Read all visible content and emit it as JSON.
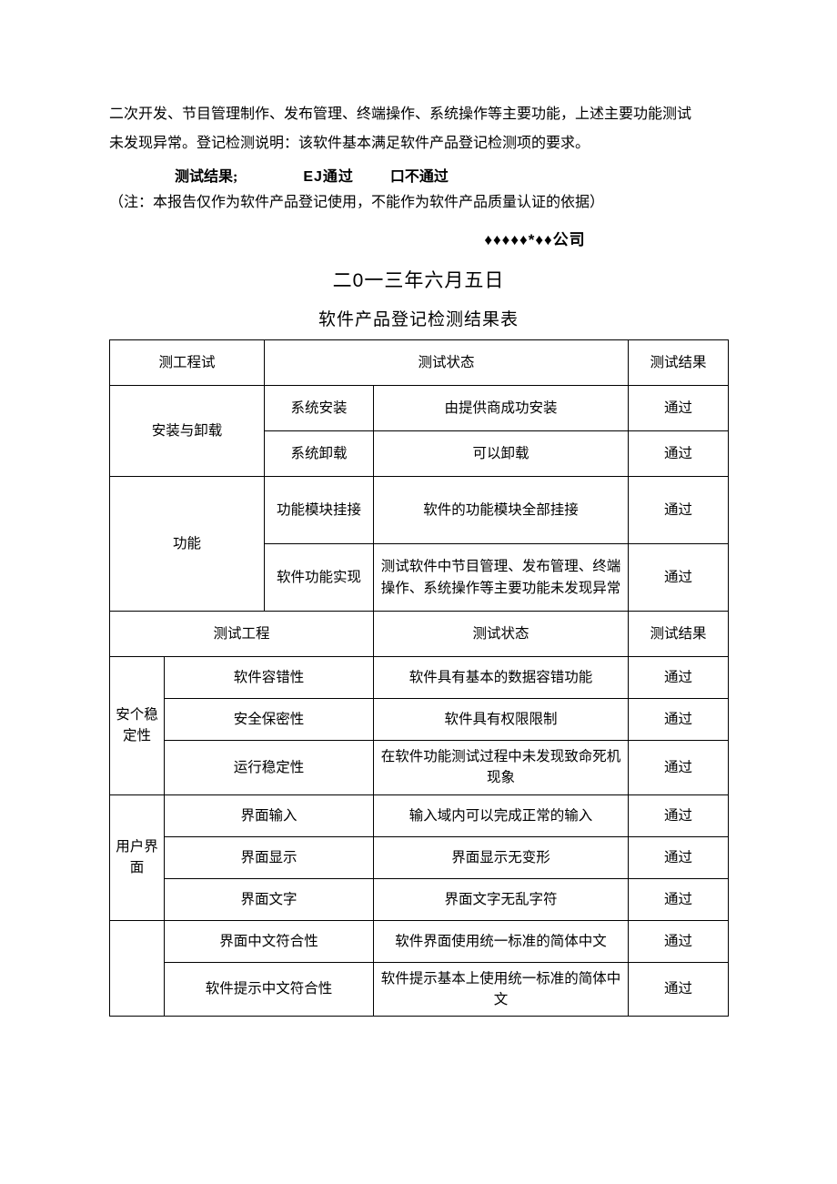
{
  "colors": {
    "text": "#000000",
    "bg": "#ffffff",
    "border": "#000000"
  },
  "intro": {
    "line1": "二次开发、节目管理制作、发布管理、终端操作、系统操作等主要功能，上述主要功能测试",
    "line2": "未发现异常。登记检测说明：该软件基本满足软件产品登记检测项的要求。"
  },
  "result_line": {
    "label": "测试结果;",
    "pass": "EJ通过",
    "fail": "口不通过"
  },
  "note": "（注：本报告仅作为软件产品登记使用，不能作为软件产品质量认证的依据）",
  "company": "♦♦♦♦♦*♦♦公司",
  "date": {
    "prefix": "二",
    "zero": "0",
    "suffix": "一三年六月五日"
  },
  "table_title": "软件产品登记检测结果表",
  "headers": {
    "project": "测工程试",
    "status": "测试状态",
    "result": "测试结果",
    "project2": "测试工程"
  },
  "install": {
    "group": "安装与卸载",
    "r1c1": "系统安装",
    "r1status": "由提供商成功安装",
    "r1res": "通过",
    "r2c1": "系统卸载",
    "r2status": "可以卸载",
    "r2res": "通过"
  },
  "func": {
    "group": "功能",
    "r1c1": "功能模块挂接",
    "r1status": "软件的功能模块全部挂接",
    "r1res": "通过",
    "r2c1": "软件功能实现",
    "r2status": "测试软件中节目管理、发布管理、终端操作、系统操作等主要功能未发现异常",
    "r2res": "通过"
  },
  "stability": {
    "group": "安个稳定性",
    "r1c1": "软件容错性",
    "r1status": "软件具有基本的数据容错功能",
    "r1res": "通过",
    "r2c1": "安全保密性",
    "r2status": "软件具有权限限制",
    "r2res": "通过",
    "r3c1": "运行稳定性",
    "r3status": "在软件功能测试过程中未发现致命死机现象",
    "r3res": "通过"
  },
  "ui": {
    "group": "用户界面",
    "r1c1": "界面输入",
    "r1status": "输入域内可以完成正常的输入",
    "r1res": "通过",
    "r2c1": "界面显示",
    "r2status": "界面显示无变形",
    "r2res": "通过",
    "r3c1": "界面文字",
    "r3status": "界面文字无乱字符",
    "r3res": "通过"
  },
  "conformance": {
    "r1c1": "界面中文符合性",
    "r1status": "软件界面使用统一标准的简体中文",
    "r1res": "通过",
    "r2c1": "软件提示中文符合性",
    "r2status": "软件提示基本上使用统一标准的简体中文",
    "r2res": "通过"
  }
}
